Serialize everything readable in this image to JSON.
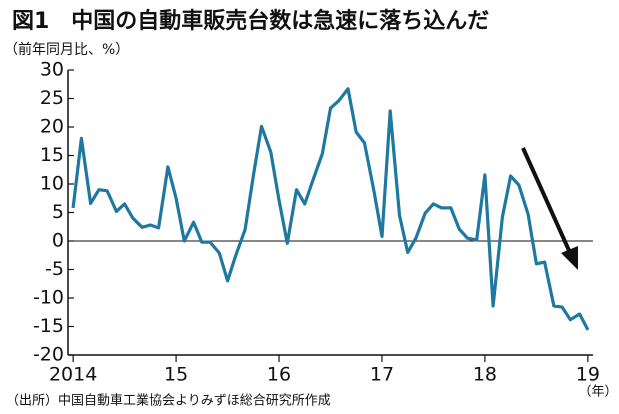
{
  "chart_data": {
    "type": "line",
    "title": "図1　中国の自動車販売台数は急速に落ち込んだ",
    "y_axis_label": "（前年同月比、%）",
    "x_axis_unit": "（年）",
    "source": "（出所）中国自動車工業協会よりみずほ総合研究所作成",
    "color": "#1f78a0",
    "xlim": [
      2013.95,
      2019.05
    ],
    "xticks": [
      {
        "value": 2014,
        "label": "2014"
      },
      {
        "value": 2015,
        "label": "15"
      },
      {
        "value": 2016,
        "label": "16"
      },
      {
        "value": 2017,
        "label": "17"
      },
      {
        "value": 2018,
        "label": "18"
      },
      {
        "value": 2019,
        "label": "19"
      }
    ],
    "ylim": [
      -20,
      30
    ],
    "yticks": [
      -20,
      -15,
      -10,
      -5,
      0,
      5,
      10,
      15,
      20,
      25,
      30
    ],
    "x": [
      2014.0,
      2014.08,
      2014.17,
      2014.25,
      2014.33,
      2014.42,
      2014.5,
      2014.58,
      2014.67,
      2014.75,
      2014.83,
      2014.92,
      2015.0,
      2015.08,
      2015.17,
      2015.25,
      2015.33,
      2015.42,
      2015.5,
      2015.58,
      2015.67,
      2015.75,
      2015.83,
      2015.92,
      2016.0,
      2016.08,
      2016.17,
      2016.25,
      2016.33,
      2016.42,
      2016.5,
      2016.58,
      2016.67,
      2016.75,
      2016.83,
      2016.92,
      2017.0,
      2017.08,
      2017.17,
      2017.25,
      2017.33,
      2017.42,
      2017.5,
      2017.58,
      2017.67,
      2017.75,
      2017.83,
      2017.92,
      2018.0,
      2018.08,
      2018.17,
      2018.25,
      2018.33,
      2018.42,
      2018.5,
      2018.58,
      2018.67,
      2018.75,
      2018.83,
      2018.92,
      2019.0
    ],
    "values": [
      5.8,
      18,
      6.6,
      9,
      8.8,
      5.2,
      6.5,
      4,
      2.4,
      2.8,
      2.3,
      13,
      7.5,
      0,
      3.3,
      -0.2,
      -0.2,
      -2.1,
      -7,
      -2.5,
      2,
      11.4,
      20.1,
      15.6,
      7.2,
      -0.4,
      9,
      6.5,
      10.7,
      15.3,
      23.3,
      24.6,
      26.7,
      19.1,
      17.2,
      9,
      0.8,
      22.8,
      4.5,
      -2,
      0.5,
      4.9,
      6.5,
      5.8,
      5.8,
      2.1,
      0.5,
      0.2,
      11.6,
      -11.4,
      4.2,
      11.4,
      9.8,
      4.7,
      -4,
      -3.7,
      -11.4,
      -11.6,
      -13.8,
      -12.8,
      -15.6
    ]
  }
}
